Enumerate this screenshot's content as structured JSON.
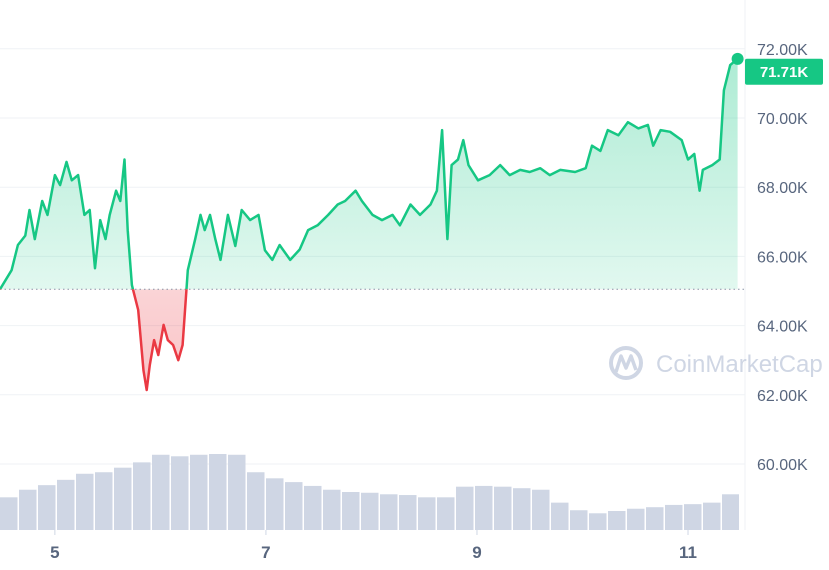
{
  "chart_data": {
    "type": "line",
    "title": "",
    "xlabel": "",
    "ylabel": "",
    "x_unit": "day of month",
    "xlim": [
      4.48,
      11.54
    ],
    "ylim": [
      58.0,
      72.0
    ],
    "y_axis_position": "right",
    "x_ticks": [
      {
        "value": 5,
        "label": "5"
      },
      {
        "value": 7,
        "label": "7"
      },
      {
        "value": 9,
        "label": "9"
      },
      {
        "value": 11,
        "label": "11"
      }
    ],
    "y_ticks": [
      {
        "value": 60,
        "label": "60.00K"
      },
      {
        "value": 62,
        "label": "62.00K"
      },
      {
        "value": 64,
        "label": "64.00K"
      },
      {
        "value": 66,
        "label": "66.00K"
      },
      {
        "value": 68,
        "label": "68.00K"
      },
      {
        "value": 70,
        "label": "70.00K"
      },
      {
        "value": 72,
        "label": "72.00K"
      }
    ],
    "grid": true,
    "baseline": 65.05,
    "colors": {
      "up": "#16c784",
      "down": "#ea3943",
      "volume": "#cfd6e4",
      "grid": "#eff2f5",
      "axis_text": "#58667e"
    },
    "current_price_label": "71.71K",
    "watermark": "CoinMarketCap",
    "price_series": [
      [
        4.48,
        65.05
      ],
      [
        4.59,
        65.6
      ],
      [
        4.65,
        66.33
      ],
      [
        4.72,
        66.6
      ],
      [
        4.76,
        67.34
      ],
      [
        4.81,
        66.5
      ],
      [
        4.88,
        67.6
      ],
      [
        4.93,
        67.2
      ],
      [
        5.0,
        68.35
      ],
      [
        5.05,
        68.06
      ],
      [
        5.11,
        68.73
      ],
      [
        5.16,
        68.2
      ],
      [
        5.22,
        68.35
      ],
      [
        5.28,
        67.2
      ],
      [
        5.33,
        67.34
      ],
      [
        5.38,
        65.66
      ],
      [
        5.43,
        67.05
      ],
      [
        5.48,
        66.5
      ],
      [
        5.52,
        67.2
      ],
      [
        5.58,
        67.9
      ],
      [
        5.62,
        67.6
      ],
      [
        5.66,
        68.8
      ],
      [
        5.69,
        66.76
      ],
      [
        5.73,
        65.17
      ],
      [
        5.79,
        64.45
      ],
      [
        5.84,
        62.7
      ],
      [
        5.87,
        62.14
      ],
      [
        5.9,
        62.86
      ],
      [
        5.94,
        63.58
      ],
      [
        5.98,
        63.15
      ],
      [
        6.03,
        64.02
      ],
      [
        6.07,
        63.58
      ],
      [
        6.12,
        63.44
      ],
      [
        6.17,
        63.0
      ],
      [
        6.21,
        63.44
      ],
      [
        6.26,
        65.6
      ],
      [
        6.33,
        66.5
      ],
      [
        6.38,
        67.2
      ],
      [
        6.42,
        66.76
      ],
      [
        6.47,
        67.2
      ],
      [
        6.52,
        66.5
      ],
      [
        6.57,
        65.9
      ],
      [
        6.64,
        67.2
      ],
      [
        6.71,
        66.3
      ],
      [
        6.77,
        67.34
      ],
      [
        6.85,
        67.05
      ],
      [
        6.93,
        67.2
      ],
      [
        6.99,
        66.18
      ],
      [
        7.06,
        65.9
      ],
      [
        7.13,
        66.33
      ],
      [
        7.23,
        65.9
      ],
      [
        7.32,
        66.2
      ],
      [
        7.4,
        66.76
      ],
      [
        7.49,
        66.9
      ],
      [
        7.59,
        67.2
      ],
      [
        7.68,
        67.5
      ],
      [
        7.75,
        67.6
      ],
      [
        7.85,
        67.9
      ],
      [
        7.91,
        67.6
      ],
      [
        8.01,
        67.2
      ],
      [
        8.1,
        67.05
      ],
      [
        8.2,
        67.2
      ],
      [
        8.27,
        66.9
      ],
      [
        8.37,
        67.5
      ],
      [
        8.46,
        67.2
      ],
      [
        8.56,
        67.5
      ],
      [
        8.62,
        67.9
      ],
      [
        8.67,
        69.65
      ],
      [
        8.72,
        66.5
      ],
      [
        8.76,
        68.64
      ],
      [
        8.82,
        68.8
      ],
      [
        8.87,
        69.36
      ],
      [
        8.92,
        68.64
      ],
      [
        9.01,
        68.2
      ],
      [
        9.12,
        68.35
      ],
      [
        9.22,
        68.64
      ],
      [
        9.31,
        68.35
      ],
      [
        9.41,
        68.5
      ],
      [
        9.5,
        68.44
      ],
      [
        9.6,
        68.55
      ],
      [
        9.69,
        68.35
      ],
      [
        9.79,
        68.5
      ],
      [
        9.93,
        68.44
      ],
      [
        10.03,
        68.55
      ],
      [
        10.09,
        69.2
      ],
      [
        10.17,
        69.05
      ],
      [
        10.24,
        69.65
      ],
      [
        10.34,
        69.5
      ],
      [
        10.43,
        69.88
      ],
      [
        10.53,
        69.7
      ],
      [
        10.62,
        69.8
      ],
      [
        10.67,
        69.2
      ],
      [
        10.74,
        69.65
      ],
      [
        10.83,
        69.6
      ],
      [
        10.94,
        69.36
      ],
      [
        11.0,
        68.8
      ],
      [
        11.06,
        68.96
      ],
      [
        11.11,
        67.9
      ],
      [
        11.14,
        68.5
      ],
      [
        11.23,
        68.64
      ],
      [
        11.3,
        68.8
      ],
      [
        11.34,
        70.8
      ],
      [
        11.4,
        71.53
      ],
      [
        11.47,
        71.71
      ]
    ],
    "volume_relative_pct": [
      43,
      53,
      59,
      66,
      74,
      76,
      82,
      89,
      99,
      97,
      99,
      100,
      99,
      76,
      68,
      63,
      58,
      53,
      50,
      49,
      47,
      46,
      43,
      43,
      57,
      58,
      57,
      55,
      53,
      36,
      26,
      22,
      25,
      28,
      30,
      33,
      34,
      36,
      47
    ]
  }
}
